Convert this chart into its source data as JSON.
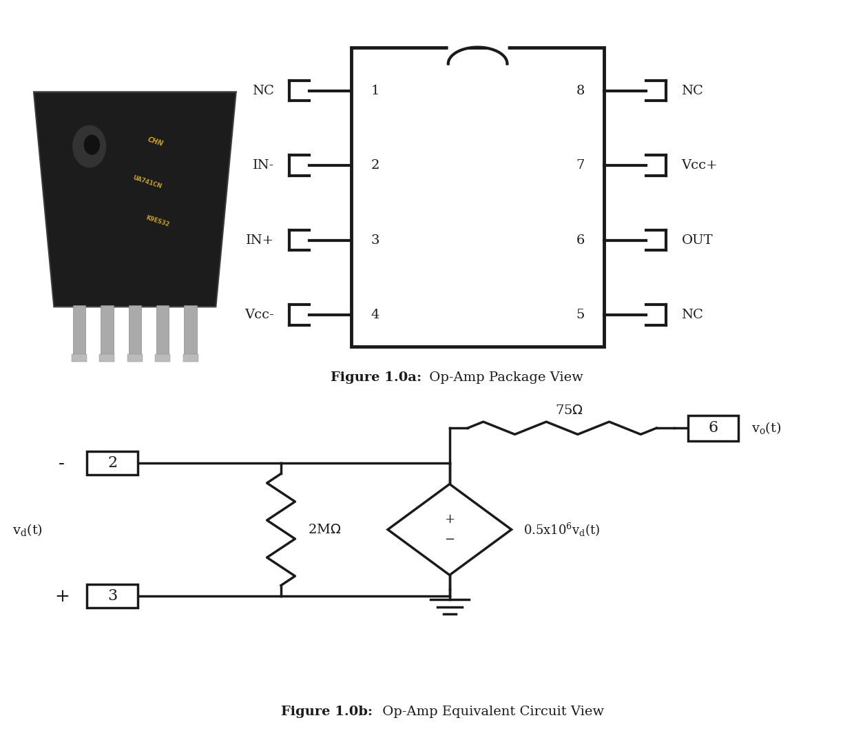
{
  "bg_color": "#ffffff",
  "line_color": "#1a1a1a",
  "fig_width": 12.24,
  "fig_height": 10.58,
  "fig1a_caption_bold": "Figure 1.0a:",
  "fig1a_caption_normal": " Op-Amp Package View",
  "fig1b_caption_bold": "Figure 1.0b:",
  "fig1b_caption_normal": " Op-Amp Equivalent Circuit View",
  "ic_pins_left": [
    "NC",
    "IN-",
    "IN+",
    "Vcc-"
  ],
  "ic_pins_right": [
    "NC",
    "Vcc+",
    "OUT",
    "NC"
  ],
  "ic_pin_numbers_left": [
    "1",
    "2",
    "3",
    "4"
  ],
  "ic_pin_numbers_right": [
    "8",
    "7",
    "6",
    "5"
  ]
}
